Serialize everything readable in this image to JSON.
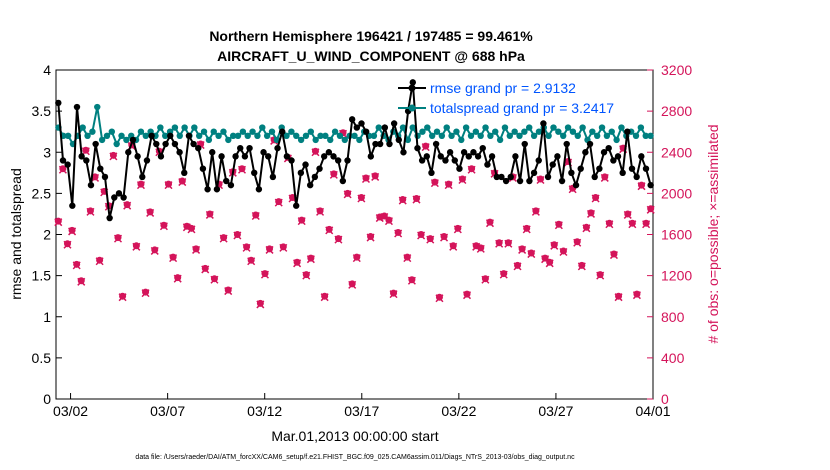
{
  "chart_data": {
    "type": "line",
    "title_line1": "Northern Hemisphere 196421 / 197485 = 99.461%",
    "title_line2": "AIRCRAFT_U_WIND_COMPONENT @ 688 hPa",
    "xlabel": "Mar.01,2013 00:00:00 start",
    "ylabel_left": "rmse and totalspread",
    "ylabel_right": "# of obs: o=possible; ×=assimilated",
    "footer": "data file: /Users/raeder/DAI/ATM_forcXX/CAM6_setup/f.e21.FHIST_BGC.f09_025.CAM6assim.011/Diags_NTrS_2013-03/obs_diag_output.nc",
    "x_ticks": [
      "03/02",
      "03/07",
      "03/12",
      "03/17",
      "03/22",
      "03/27",
      "04/01"
    ],
    "x_tick_days": [
      1,
      6,
      11,
      16,
      21,
      26,
      31
    ],
    "xlim": [
      0.25,
      31.0
    ],
    "ylim_left": [
      0,
      4
    ],
    "y_ticks_left": [
      "0",
      "0.5",
      "1",
      "1.5",
      "2",
      "2.5",
      "3",
      "3.5",
      "4"
    ],
    "ylim_right": [
      0,
      3200
    ],
    "y_ticks_right": [
      "0",
      "400",
      "800",
      "1200",
      "1600",
      "2000",
      "2400",
      "2800",
      "3200"
    ],
    "colors": {
      "rmse": "#000000",
      "spread": "#008080",
      "obs": "#d4145a",
      "legend_text": "#0055ff"
    },
    "series": [
      {
        "name": "rmse",
        "legend": "rmse grand pr = 2.9132",
        "values": [
          3.6,
          2.9,
          2.85,
          2.35,
          3.55,
          2.95,
          2.9,
          2.6,
          3.1,
          2.8,
          2.7,
          2.2,
          2.45,
          2.5,
          2.45,
          3.0,
          3.15,
          2.95,
          2.7,
          2.9,
          3.2,
          3.1,
          2.95,
          3.1,
          3.2,
          3.1,
          3.0,
          2.75,
          3.2,
          3.1,
          3.05,
          2.8,
          2.55,
          3.0,
          2.55,
          2.95,
          2.65,
          2.6,
          2.95,
          3.05,
          2.95,
          3.05,
          2.75,
          2.55,
          3.0,
          2.95,
          2.7,
          3.05,
          3.25,
          2.95,
          2.9,
          2.35,
          2.75,
          2.85,
          2.6,
          2.7,
          2.8,
          2.95,
          3.0,
          2.95,
          2.9,
          2.65,
          2.9,
          3.4,
          3.3,
          3.35,
          3.25,
          2.95,
          3.1,
          3.1,
          3.3,
          3.1,
          3.35,
          3.15,
          3.0,
          3.5,
          3.85,
          3.05,
          2.9,
          2.95,
          2.75,
          3.1,
          2.95,
          2.9,
          3.0,
          2.9,
          2.8,
          3.0,
          2.95,
          3.0,
          2.95,
          3.05,
          2.85,
          2.95,
          2.7,
          2.7,
          2.65,
          2.7,
          2.95,
          2.65,
          3.1,
          2.65,
          2.75,
          2.9,
          3.35,
          2.7,
          2.85,
          2.95,
          2.65,
          3.1,
          2.75,
          2.6,
          2.8,
          3.0,
          3.1,
          2.7,
          2.8,
          3.0,
          3.05,
          2.9,
          2.95,
          2.75,
          3.25,
          2.8,
          2.7,
          2.95,
          2.8,
          2.6
        ]
      },
      {
        "name": "totalspread",
        "legend": "totalspread grand pr = 3.2417",
        "values": [
          3.3,
          3.2,
          3.2,
          3.1,
          3.2,
          3.3,
          3.2,
          3.25,
          3.55,
          3.15,
          3.2,
          3.25,
          3.1,
          3.2,
          3.15,
          3.2,
          3.15,
          3.25,
          3.2,
          3.25,
          3.2,
          3.3,
          3.2,
          3.25,
          3.3,
          3.2,
          3.3,
          3.2,
          3.3,
          3.2,
          3.25,
          3.15,
          3.25,
          3.2,
          3.25,
          3.15,
          3.2,
          3.2,
          3.25,
          3.2,
          3.25,
          3.2,
          3.3,
          3.2,
          3.25,
          3.15,
          3.3,
          3.2,
          3.25,
          3.2,
          3.15,
          3.2,
          3.25,
          3.15,
          3.2,
          3.2,
          3.15,
          3.25,
          3.2,
          3.15,
          3.2,
          3.2,
          3.15,
          3.25,
          3.2,
          3.2,
          3.3,
          3.2,
          3.15,
          3.25,
          3.2,
          3.3,
          3.15,
          3.3,
          3.2,
          3.25,
          3.3,
          3.2,
          3.25,
          3.2,
          3.3,
          3.2,
          3.25,
          3.15,
          3.3,
          3.2,
          3.25,
          3.2,
          3.3,
          3.2,
          3.25,
          3.15,
          3.3,
          3.2,
          3.25,
          3.2,
          3.25,
          3.3,
          3.2,
          3.25,
          3.3,
          3.2,
          3.3,
          3.25,
          3.2,
          3.3,
          3.25,
          3.2,
          3.3,
          3.15,
          3.25,
          3.2,
          3.3,
          3.2,
          3.25,
          3.15,
          3.3,
          3.2,
          3.25,
          3.2,
          3.3,
          3.2,
          3.2
        ]
      },
      {
        "name": "obs_possible",
        "values": [
          1730,
          2240,
          1510,
          1640,
          1310,
          1150,
          2420,
          1830,
          2160,
          1350,
          2020,
          1880,
          2370,
          1570,
          1000,
          1890,
          2470,
          1490,
          2090,
          1040,
          1820,
          1450,
          2410,
          1690,
          2090,
          1380,
          1180,
          2120,
          1680,
          1660,
          1460,
          2480,
          1270,
          1800,
          1170,
          2090,
          1570,
          1060,
          2210,
          1600,
          2240,
          1480,
          1350,
          1790,
          930,
          1220,
          1460,
          2520,
          1920,
          1480,
          2350,
          1960,
          1330,
          1740,
          1210,
          1370,
          2410,
          1830,
          1000,
          1650,
          2190,
          1560,
          2590,
          2000,
          1120,
          1380,
          1960,
          2150,
          1580,
          2170,
          1770,
          1780,
          1740,
          1030,
          1620,
          1940,
          1380,
          1160,
          1950,
          1600,
          2460,
          1560,
          2110,
          990,
          1580,
          2090,
          1490,
          1660,
          2140,
          1020,
          2240,
          1490,
          1470,
          1170,
          1720,
          2200,
          1520,
          1220,
          1520,
          2160,
          1300,
          1460,
          1660,
          1420,
          1830,
          2140,
          1370,
          1330,
          1500,
          1700,
          1440,
          2310,
          2050,
          1530,
          1300,
          1670,
          1810,
          1960,
          1210,
          2160,
          1710,
          1410,
          1000,
          2440,
          1800,
          1710,
          1020,
          2080,
          1710,
          1850
        ]
      },
      {
        "name": "obs_assimilated",
        "values": [
          1720,
          2230,
          1500,
          1630,
          1300,
          1140,
          2410,
          1820,
          2150,
          1340,
          2010,
          1870,
          2360,
          1560,
          990,
          1880,
          2460,
          1480,
          2080,
          1030,
          1810,
          1440,
          2400,
          1680,
          2080,
          1370,
          1170,
          2110,
          1670,
          1650,
          1450,
          2470,
          1260,
          1790,
          1160,
          2080,
          1560,
          1050,
          2200,
          1590,
          2230,
          1470,
          1340,
          1780,
          920,
          1210,
          1450,
          2510,
          1910,
          1470,
          2340,
          1950,
          1320,
          1730,
          1200,
          1360,
          2400,
          1820,
          990,
          1640,
          2180,
          1550,
          2580,
          1990,
          1110,
          1370,
          1950,
          2140,
          1570,
          2160,
          1760,
          1770,
          1730,
          1020,
          1610,
          1930,
          1370,
          1150,
          1940,
          1590,
          2450,
          1550,
          2100,
          980,
          1570,
          2080,
          1480,
          1650,
          2130,
          1010,
          2230,
          1480,
          1460,
          1160,
          1710,
          2190,
          1510,
          1210,
          1510,
          2150,
          1290,
          1450,
          1650,
          1410,
          1820,
          2130,
          1360,
          1320,
          1490,
          1690,
          1430,
          2300,
          2040,
          1520,
          1290,
          1660,
          1800,
          1950,
          1200,
          2150,
          1700,
          1400,
          990,
          2430,
          1790,
          1700,
          1010,
          2070,
          1700,
          1840
        ]
      }
    ]
  }
}
